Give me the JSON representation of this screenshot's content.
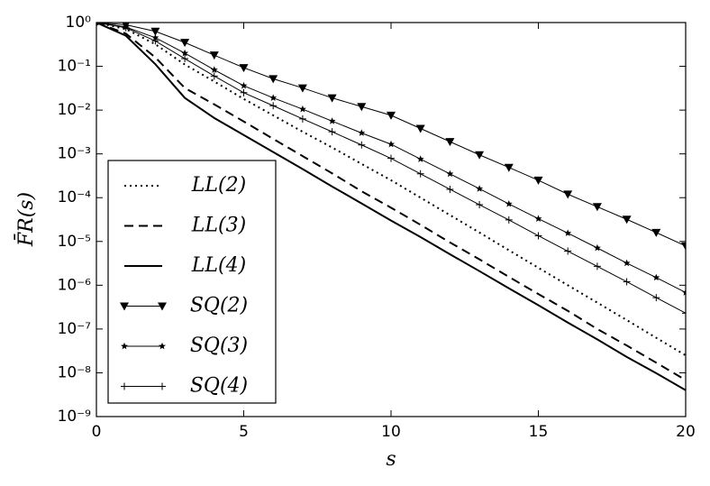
{
  "chart_data": {
    "type": "line",
    "xlabel": "s",
    "ylabel": "F̄R(s)",
    "log_y": true,
    "xlim": [
      0,
      20
    ],
    "xticks": [
      0,
      5,
      10,
      15,
      20
    ],
    "ylim": [
      1e-09,
      1
    ],
    "yticks": [
      {
        "value": 1,
        "label": "10⁰"
      },
      {
        "value": 0.1,
        "label": "10⁻¹"
      },
      {
        "value": 0.01,
        "label": "10⁻²"
      },
      {
        "value": 0.001,
        "label": "10⁻³"
      },
      {
        "value": 0.0001,
        "label": "10⁻⁴"
      },
      {
        "value": 1e-05,
        "label": "10⁻⁵"
      },
      {
        "value": 1e-06,
        "label": "10⁻⁶"
      },
      {
        "value": 1e-07,
        "label": "10⁻⁷"
      },
      {
        "value": 1e-08,
        "label": "10⁻⁸"
      },
      {
        "value": 1e-09,
        "label": "10⁻⁹"
      }
    ],
    "legend": "lower left",
    "x": [
      0,
      1,
      2,
      3,
      4,
      5,
      6,
      7,
      8,
      9,
      10,
      11,
      12,
      13,
      14,
      15,
      16,
      17,
      18,
      19,
      20
    ],
    "series": [
      {
        "name": "LL(2)",
        "color": "#000000",
        "dash": "dotted",
        "marker": "none",
        "values": [
          1,
          0.71,
          0.32,
          0.11,
          0.045,
          0.018,
          0.0076,
          0.0032,
          0.0014,
          0.00059,
          0.00025,
          0.0001,
          4e-05,
          1.6e-05,
          6.3e-06,
          2.5e-06,
          1e-06,
          4e-07,
          1.6e-07,
          6.3e-08,
          2.5e-08
        ]
      },
      {
        "name": "LL(3)",
        "color": "#000000",
        "dash": "dashed",
        "marker": "none",
        "values": [
          1,
          0.56,
          0.16,
          0.032,
          0.0135,
          0.0055,
          0.0022,
          0.00089,
          0.00036,
          0.00014,
          5.9e-05,
          2.4e-05,
          9.5e-06,
          3.9e-06,
          1.55e-06,
          6.3e-07,
          2.6e-07,
          1e-07,
          4.2e-08,
          1.7e-08,
          6.8e-09
        ]
      },
      {
        "name": "LL(4)",
        "color": "#000000",
        "dash": "solid",
        "marker": "none",
        "values": [
          1,
          0.5,
          0.112,
          0.019,
          0.0066,
          0.0027,
          0.0011,
          0.00045,
          0.00018,
          7.4e-05,
          3e-05,
          1.26e-05,
          5.1e-06,
          2.1e-06,
          8.5e-07,
          3.5e-07,
          1.4e-07,
          5.8e-08,
          2.3e-08,
          9.8e-09,
          4e-09
        ]
      },
      {
        "name": "SQ(2)",
        "color": "#000000",
        "dash": "solid",
        "marker": "triangle-down",
        "values": [
          1,
          0.89,
          0.63,
          0.35,
          0.18,
          0.093,
          0.052,
          0.032,
          0.019,
          0.012,
          0.0076,
          0.0038,
          0.0019,
          0.00095,
          0.00049,
          0.00025,
          0.00012,
          6.2e-05,
          3.2e-05,
          1.6e-05,
          7.9e-06
        ]
      },
      {
        "name": "SQ(3)",
        "color": "#000000",
        "dash": "solid",
        "marker": "star",
        "values": [
          1,
          0.79,
          0.45,
          0.2,
          0.083,
          0.036,
          0.019,
          0.0105,
          0.0056,
          0.003,
          0.00166,
          0.00076,
          0.00035,
          0.00016,
          7.2e-05,
          3.3e-05,
          1.55e-05,
          7.1e-06,
          3.2e-06,
          1.5e-06,
          6.8e-07
        ]
      },
      {
        "name": "SQ(4)",
        "color": "#000000",
        "dash": "solid",
        "marker": "plus",
        "values": [
          1,
          0.76,
          0.38,
          0.15,
          0.06,
          0.025,
          0.0126,
          0.0063,
          0.0032,
          0.0016,
          0.00079,
          0.00035,
          0.000155,
          6.9e-05,
          3.1e-05,
          1.35e-05,
          6e-06,
          2.7e-06,
          1.2e-06,
          5.2e-07,
          2.3e-07
        ]
      }
    ]
  }
}
